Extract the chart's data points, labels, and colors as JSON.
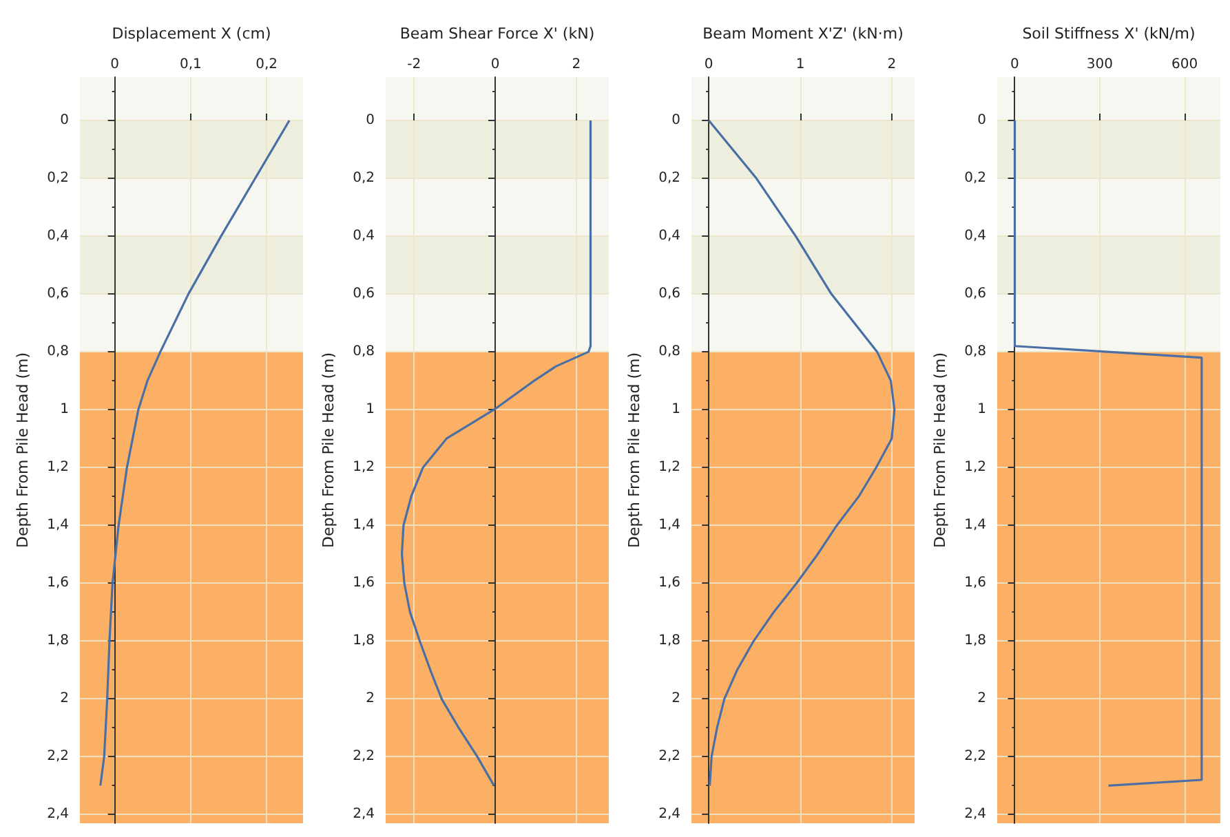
{
  "chart_data": [
    {
      "type": "line",
      "xlabel": "Displacement X (cm)",
      "ylabel": "Depth From Pile Head (m)",
      "xlim": [
        -0.046,
        0.248
      ],
      "xticks": [
        0,
        {
          "value": 0.1,
          "label": "0,1"
        },
        {
          "value": 0.2,
          "label": "0,2"
        }
      ],
      "ylim": [
        2.43,
        -0.15
      ],
      "yticks": [
        0,
        {
          "value": 0.2,
          "label": "0,2"
        },
        {
          "value": 0.4,
          "label": "0,4"
        },
        {
          "value": 0.6,
          "label": "0,6"
        },
        {
          "value": 0.8,
          "label": "0,8"
        },
        1,
        {
          "value": 1.2,
          "label": "1,2"
        },
        {
          "value": 1.4,
          "label": "1,4"
        },
        {
          "value": 1.6,
          "label": "1,6"
        },
        {
          "value": 1.8,
          "label": "1,8"
        },
        2,
        {
          "value": 2.2,
          "label": "2,2"
        },
        {
          "value": 2.4,
          "label": "2,4"
        }
      ],
      "grid": true,
      "bands": [
        {
          "axis": "y",
          "from": 0,
          "to": 0.2,
          "color": "#eeeedf"
        },
        {
          "axis": "y",
          "from": 0.4,
          "to": 0.6,
          "color": "#eeeedf"
        },
        {
          "axis": "y",
          "from": 0.8,
          "to": 2.43,
          "color": "#fbb066"
        }
      ],
      "series": [
        {
          "color": "#4a6fa5",
          "x": [
            0.23,
            0.185,
            0.14,
            0.097,
            0.06,
            0.043,
            0.031,
            0.016,
            0.005,
            -0.003,
            -0.007,
            -0.01,
            -0.014,
            -0.019
          ],
          "values": [
            0,
            0.2,
            0.4,
            0.6,
            0.8,
            0.9,
            1.0,
            1.2,
            1.4,
            1.6,
            1.8,
            2.0,
            2.2,
            2.3
          ]
        }
      ]
    },
    {
      "type": "line",
      "xlabel": "Beam Shear Force X' (kN)",
      "ylabel": "Depth From Pile Head (m)",
      "xlim": [
        -2.7,
        2.8
      ],
      "xticks": [
        -2,
        0,
        2
      ],
      "ylim": [
        2.43,
        -0.15
      ],
      "yticks": [
        0,
        {
          "value": 0.2,
          "label": "0,2"
        },
        {
          "value": 0.4,
          "label": "0,4"
        },
        {
          "value": 0.6,
          "label": "0,6"
        },
        {
          "value": 0.8,
          "label": "0,8"
        },
        1,
        {
          "value": 1.2,
          "label": "1,2"
        },
        {
          "value": 1.4,
          "label": "1,4"
        },
        {
          "value": 1.6,
          "label": "1,6"
        },
        {
          "value": 1.8,
          "label": "1,8"
        },
        2,
        {
          "value": 2.2,
          "label": "2,2"
        },
        {
          "value": 2.4,
          "label": "2,4"
        }
      ],
      "grid": true,
      "bands": [
        {
          "axis": "y",
          "from": 0,
          "to": 0.2,
          "color": "#eeeedf"
        },
        {
          "axis": "y",
          "from": 0.4,
          "to": 0.6,
          "color": "#eeeedf"
        },
        {
          "axis": "y",
          "from": 0.8,
          "to": 2.43,
          "color": "#fbb066"
        }
      ],
      "series": [
        {
          "color": "#4a6fa5",
          "x": [
            2.35,
            2.35,
            2.3,
            1.5,
            0.96,
            -0.03,
            -1.2,
            -1.78,
            -2.07,
            -2.26,
            -2.3,
            -2.24,
            -2.1,
            -1.86,
            -1.6,
            -1.32,
            -0.9,
            -0.44,
            -0.03
          ],
          "values": [
            0,
            0.78,
            0.8,
            0.85,
            0.9,
            1.0,
            1.1,
            1.2,
            1.3,
            1.4,
            1.5,
            1.6,
            1.7,
            1.8,
            1.9,
            2.0,
            2.1,
            2.2,
            2.3
          ]
        }
      ]
    },
    {
      "type": "line",
      "xlabel": "Beam Moment X'Z' (kN·m)",
      "ylabel": "Depth From Pile Head (m)",
      "xlim": [
        -0.19,
        2.25
      ],
      "xticks": [
        0,
        1,
        2
      ],
      "ylim": [
        2.43,
        -0.15
      ],
      "yticks": [
        0,
        {
          "value": 0.2,
          "label": "0,2"
        },
        {
          "value": 0.4,
          "label": "0,4"
        },
        {
          "value": 0.6,
          "label": "0,6"
        },
        {
          "value": 0.8,
          "label": "0,8"
        },
        1,
        {
          "value": 1.2,
          "label": "1,2"
        },
        {
          "value": 1.4,
          "label": "1,4"
        },
        {
          "value": 1.6,
          "label": "1,6"
        },
        {
          "value": 1.8,
          "label": "1,8"
        },
        2,
        {
          "value": 2.2,
          "label": "2,2"
        },
        {
          "value": 2.4,
          "label": "2,4"
        }
      ],
      "grid": true,
      "bands": [
        {
          "axis": "y",
          "from": 0,
          "to": 0.2,
          "color": "#eeeedf"
        },
        {
          "axis": "y",
          "from": 0.4,
          "to": 0.6,
          "color": "#eeeedf"
        },
        {
          "axis": "y",
          "from": 0.8,
          "to": 2.43,
          "color": "#fbb066"
        }
      ],
      "series": [
        {
          "color": "#4a6fa5",
          "x": [
            0,
            0.52,
            0.95,
            1.34,
            1.84,
            1.99,
            2.03,
            2.0,
            1.83,
            1.64,
            1.4,
            1.19,
            0.96,
            0.71,
            0.49,
            0.31,
            0.17,
            0.09,
            0.03,
            0.01
          ],
          "values": [
            0,
            0.2,
            0.4,
            0.6,
            0.8,
            0.9,
            1.0,
            1.1,
            1.2,
            1.3,
            1.4,
            1.5,
            1.6,
            1.7,
            1.8,
            1.9,
            2.0,
            2.1,
            2.2,
            2.3
          ]
        }
      ]
    },
    {
      "type": "line",
      "xlabel": "Soil Stiffness X' (kN/m)",
      "ylabel": "Depth From Pile Head (m)",
      "xlim": [
        -62,
        726
      ],
      "xticks": [
        0,
        300,
        600
      ],
      "ylim": [
        2.43,
        -0.15
      ],
      "yticks": [
        0,
        {
          "value": 0.2,
          "label": "0,2"
        },
        {
          "value": 0.4,
          "label": "0,4"
        },
        {
          "value": 0.6,
          "label": "0,6"
        },
        {
          "value": 0.8,
          "label": "0,8"
        },
        1,
        {
          "value": 1.2,
          "label": "1,2"
        },
        {
          "value": 1.4,
          "label": "1,4"
        },
        {
          "value": 1.6,
          "label": "1,6"
        },
        {
          "value": 1.8,
          "label": "1,8"
        },
        2,
        {
          "value": 2.2,
          "label": "2,2"
        },
        {
          "value": 2.4,
          "label": "2,4"
        }
      ],
      "grid": true,
      "bands": [
        {
          "axis": "y",
          "from": 0,
          "to": 0.2,
          "color": "#eeeedf"
        },
        {
          "axis": "y",
          "from": 0.4,
          "to": 0.6,
          "color": "#eeeedf"
        },
        {
          "axis": "y",
          "from": 0.8,
          "to": 2.43,
          "color": "#fbb066"
        }
      ],
      "series": [
        {
          "color": "#4a6fa5",
          "x": [
            0,
            0,
            660,
            660,
            331
          ],
          "values": [
            0,
            0.78,
            0.82,
            2.28,
            2.3
          ]
        }
      ]
    }
  ]
}
